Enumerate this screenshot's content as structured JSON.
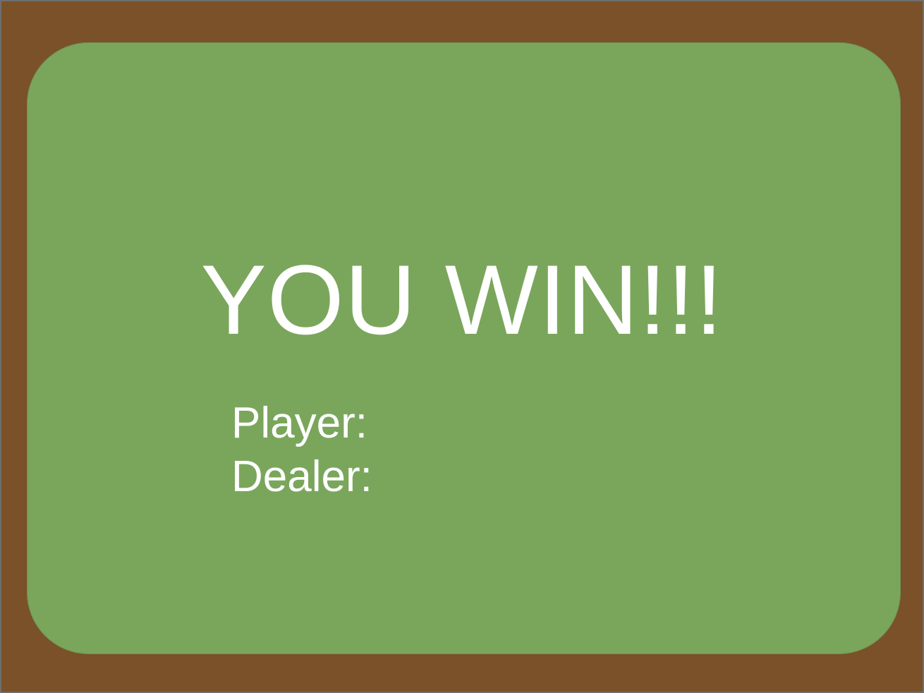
{
  "game": {
    "result_message": "YOU WIN!!!",
    "player_label": "Player:",
    "dealer_label": "Dealer:",
    "colors": {
      "table_border": "#7a5128",
      "felt": "#7aa65c",
      "text": "#ffffff"
    }
  }
}
